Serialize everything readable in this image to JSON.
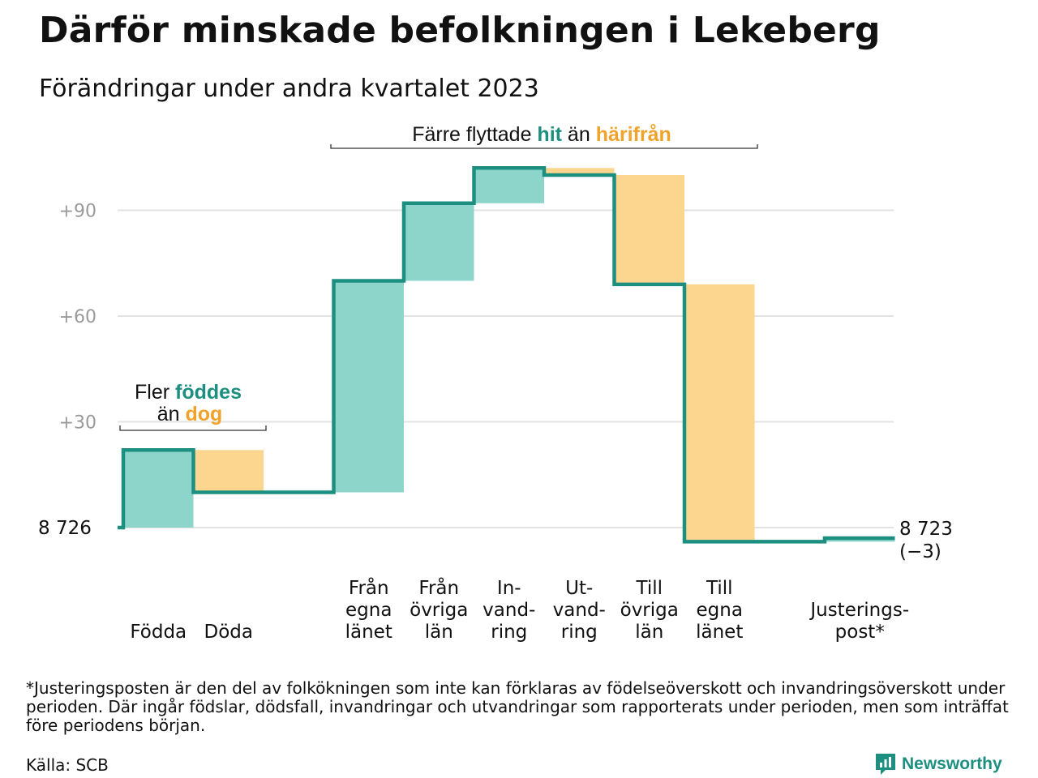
{
  "title": "Därför minskade befolkningen i Lekeberg",
  "subtitle": "Förändringar under andra kvartalet 2023",
  "chart_data": {
    "type": "waterfall",
    "base_value": 8726,
    "base_label": "8  726",
    "end_label": "8 723",
    "end_change_label": "(−3)",
    "y_ticks": [
      {
        "value": 30,
        "label": "+30"
      },
      {
        "value": 60,
        "label": "+60"
      },
      {
        "value": 90,
        "label": "+90"
      }
    ],
    "grid": true,
    "steps": [
      {
        "label": [
          "Födda"
        ],
        "change": 22
      },
      {
        "label": [
          "Döda"
        ],
        "change": -12
      },
      {
        "label": [],
        "change": 0
      },
      {
        "label": [
          "Från",
          "egna",
          "länet"
        ],
        "change": 60
      },
      {
        "label": [
          "Från",
          "övriga",
          "län"
        ],
        "change": 22
      },
      {
        "label": [
          "In-",
          "vand-",
          "ring"
        ],
        "change": 10
      },
      {
        "label": [
          "Ut-",
          "vand-",
          "ring"
        ],
        "change": -2
      },
      {
        "label": [
          "Till",
          "övriga",
          "län"
        ],
        "change": -31
      },
      {
        "label": [
          "Till",
          "egna",
          "länet"
        ],
        "change": -73
      },
      {
        "label": [],
        "change": 0
      },
      {
        "label": [
          "Justerings-",
          "post*"
        ],
        "change": 1
      }
    ],
    "annotations": [
      {
        "parts": [
          {
            "text": "Färre flyttade",
            "role": "plain"
          },
          {
            "text": "hit",
            "role": "in"
          },
          {
            "text": "än",
            "role": "plain"
          },
          {
            "text": "härifrån",
            "role": "out"
          }
        ]
      },
      {
        "line1": [
          {
            "text": "Fler",
            "role": "plain"
          },
          {
            "text": "föddes",
            "role": "in"
          }
        ],
        "line2": [
          {
            "text": "än",
            "role": "plain"
          },
          {
            "text": "dog",
            "role": "out"
          }
        ]
      }
    ],
    "colors": {
      "increase": "#8dd5cb",
      "decrease": "#fcd68f",
      "line": "#1d8f80",
      "in_text": "#1d8f80",
      "out_text": "#f0a22a",
      "grid": "#e3e3e3",
      "tick_text": "#9a9a9a"
    }
  },
  "footnote": "*Justeringsposten är den del av folkökningen som inte kan förklaras av födelseöverskott och invandringsöverskott under perioden. Där ingår födslar, dödsfall, invandringar och utvandringar som rapporterats under perioden, men som inträffat före periodens början.",
  "source": "Källa: SCB",
  "brand": {
    "name": "Newsworthy",
    "icon": "newsworthy-logo-icon"
  }
}
